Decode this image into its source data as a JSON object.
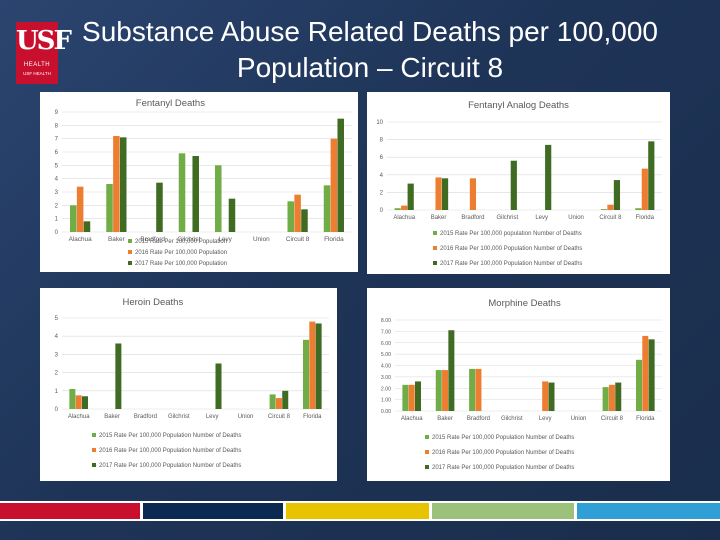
{
  "slide": {
    "title_line1": "Substance Abuse Related Deaths per 100,000",
    "title_line2": "Population – Circuit 8",
    "logo": {
      "text": "USF",
      "sub1": "HEALTH",
      "sub2": "USF HEALTH"
    }
  },
  "colors": {
    "s2015": "#70ad47",
    "s2016": "#ed7d31",
    "s2017": "#3f6b22",
    "grid": "#d9d9d9",
    "text": "#595959",
    "stripes": [
      "#c8102e",
      "#0b2a52",
      "#e8c400",
      "#9bc17b",
      "#2f9fd6"
    ]
  },
  "chart_data": [
    {
      "type": "bar",
      "title": "Fentanyl Deaths",
      "categories": [
        "Alachua",
        "Baker",
        "Bradford",
        "Gilchrist",
        "Levy",
        "Union",
        "Circuit 8",
        "Florida"
      ],
      "ylim": [
        0,
        9
      ],
      "yticks": [
        "0",
        "1",
        "2",
        "3",
        "4",
        "5",
        "6",
        "7",
        "8",
        "9"
      ],
      "series": [
        {
          "name": "2015 Rate Per 100,000 Population",
          "values": [
            2.0,
            3.6,
            0,
            5.9,
            5.0,
            0,
            2.3,
            3.5
          ]
        },
        {
          "name": "2016 Rate Per 100,000 Population",
          "values": [
            3.4,
            7.2,
            0,
            0,
            0,
            0,
            2.8,
            7.0
          ]
        },
        {
          "name": "2017 Rate Per 100,000 Population",
          "values": [
            0.8,
            7.1,
            3.7,
            5.7,
            2.5,
            0,
            1.7,
            8.5
          ]
        }
      ]
    },
    {
      "type": "bar",
      "title": "Fentanyl Analog Deaths",
      "categories": [
        "Alachua",
        "Baker",
        "Bradford",
        "Gilchrist",
        "Levy",
        "Union",
        "Circuit 8",
        "Florida"
      ],
      "ylim": [
        0,
        10
      ],
      "yticks": [
        "0",
        "2",
        "4",
        "6",
        "8",
        "10"
      ],
      "series": [
        {
          "name": "2015 Rate Per 100,000 population Number of Deaths",
          "values": [
            0.2,
            0,
            0,
            0,
            0,
            0,
            0.1,
            0.2
          ]
        },
        {
          "name": "2016 Rate Per 100,000 Population Number of Deaths",
          "values": [
            0.5,
            3.7,
            3.6,
            0,
            0,
            0,
            0.6,
            4.7
          ]
        },
        {
          "name": "2017 Rate Per 100,000 Population Number of Deaths",
          "values": [
            3.0,
            3.6,
            0,
            5.6,
            7.4,
            0,
            3.4,
            7.8
          ]
        }
      ]
    },
    {
      "type": "bar",
      "title": "Heroin Deaths",
      "categories": [
        "Alachua",
        "Baker",
        "Bradford",
        "Gilchrist",
        "Levy",
        "Union",
        "Circuit 8",
        "Florida"
      ],
      "ylim": [
        0,
        5
      ],
      "yticks": [
        "0",
        "1",
        "2",
        "3",
        "4",
        "5"
      ],
      "series": [
        {
          "name": "2015 Rate Per 100,000 Population Number of Deaths",
          "values": [
            1.1,
            0,
            0,
            0,
            0,
            0,
            0.8,
            3.8
          ]
        },
        {
          "name": "2016 Rate Per 100,000 Population Number of Deaths",
          "values": [
            0.75,
            0,
            0,
            0,
            0,
            0,
            0.6,
            4.8
          ]
        },
        {
          "name": "2017 Rate Per 100,000 Population Number of Deaths",
          "values": [
            0.7,
            3.6,
            0,
            0,
            2.5,
            0,
            1.0,
            4.7
          ]
        }
      ]
    },
    {
      "type": "bar",
      "title": "Morphine Deaths",
      "categories": [
        "Alachua",
        "Baker",
        "Bradford",
        "Gilchrist",
        "Levy",
        "Union",
        "Circuit 8",
        "Florida"
      ],
      "ylim": [
        0,
        8
      ],
      "yticks": [
        "0.00",
        "1.00",
        "2.00",
        "3.00",
        "4.00",
        "5.00",
        "6.00",
        "7.00",
        "8.00"
      ],
      "series": [
        {
          "name": "2015 Rate Per 100,000 Population Number of Deaths",
          "values": [
            2.3,
            3.6,
            3.7,
            0,
            0,
            0,
            2.1,
            4.5
          ]
        },
        {
          "name": "2016 Rate Per 100,000 Population Number of Deaths",
          "values": [
            2.3,
            3.6,
            3.7,
            0,
            2.6,
            0,
            2.3,
            6.6
          ]
        },
        {
          "name": "2017 Rate Per 100,000 Population Number of Deaths",
          "values": [
            2.6,
            7.1,
            0,
            0,
            2.5,
            0,
            2.5,
            6.3
          ]
        }
      ]
    }
  ]
}
